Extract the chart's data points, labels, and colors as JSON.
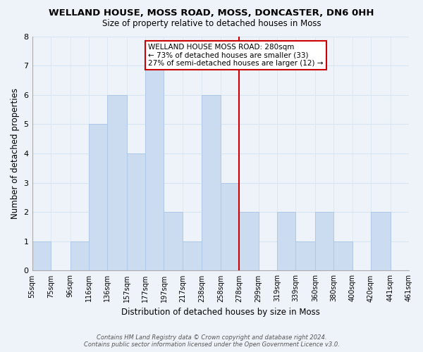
{
  "title": "WELLAND HOUSE, MOSS ROAD, MOSS, DONCASTER, DN6 0HH",
  "subtitle": "Size of property relative to detached houses in Moss",
  "xlabel": "Distribution of detached houses by size in Moss",
  "ylabel": "Number of detached properties",
  "bar_edges": [
    55,
    75,
    96,
    116,
    136,
    157,
    177,
    197,
    217,
    238,
    258,
    278,
    299,
    319,
    339,
    360,
    380,
    400,
    420,
    441,
    461
  ],
  "bar_heights": [
    1,
    0,
    1,
    5,
    6,
    4,
    7,
    2,
    1,
    6,
    3,
    2,
    0,
    2,
    1,
    2,
    1,
    0,
    2,
    0
  ],
  "tick_labels": [
    "55sqm",
    "75sqm",
    "96sqm",
    "116sqm",
    "136sqm",
    "157sqm",
    "177sqm",
    "197sqm",
    "217sqm",
    "238sqm",
    "258sqm",
    "278sqm",
    "299sqm",
    "319sqm",
    "339sqm",
    "360sqm",
    "380sqm",
    "400sqm",
    "420sqm",
    "441sqm",
    "461sqm"
  ],
  "bar_color": "#ccdcf0",
  "bar_edge_color": "#aec8e8",
  "reference_line_x": 278,
  "reference_line_color": "#cc0000",
  "ylim": [
    0,
    8
  ],
  "yticks": [
    0,
    1,
    2,
    3,
    4,
    5,
    6,
    7,
    8
  ],
  "annotation_title": "WELLAND HOUSE MOSS ROAD: 280sqm",
  "annotation_line1": "← 73% of detached houses are smaller (33)",
  "annotation_line2": "27% of semi-detached houses are larger (12) →",
  "annotation_box_color": "#ffffff",
  "annotation_box_edge": "#cc0000",
  "grid_color": "#d8e4f0",
  "background_color": "#eef3fa",
  "footnote1": "Contains HM Land Registry data © Crown copyright and database right 2024.",
  "footnote2": "Contains public sector information licensed under the Open Government Licence v3.0."
}
